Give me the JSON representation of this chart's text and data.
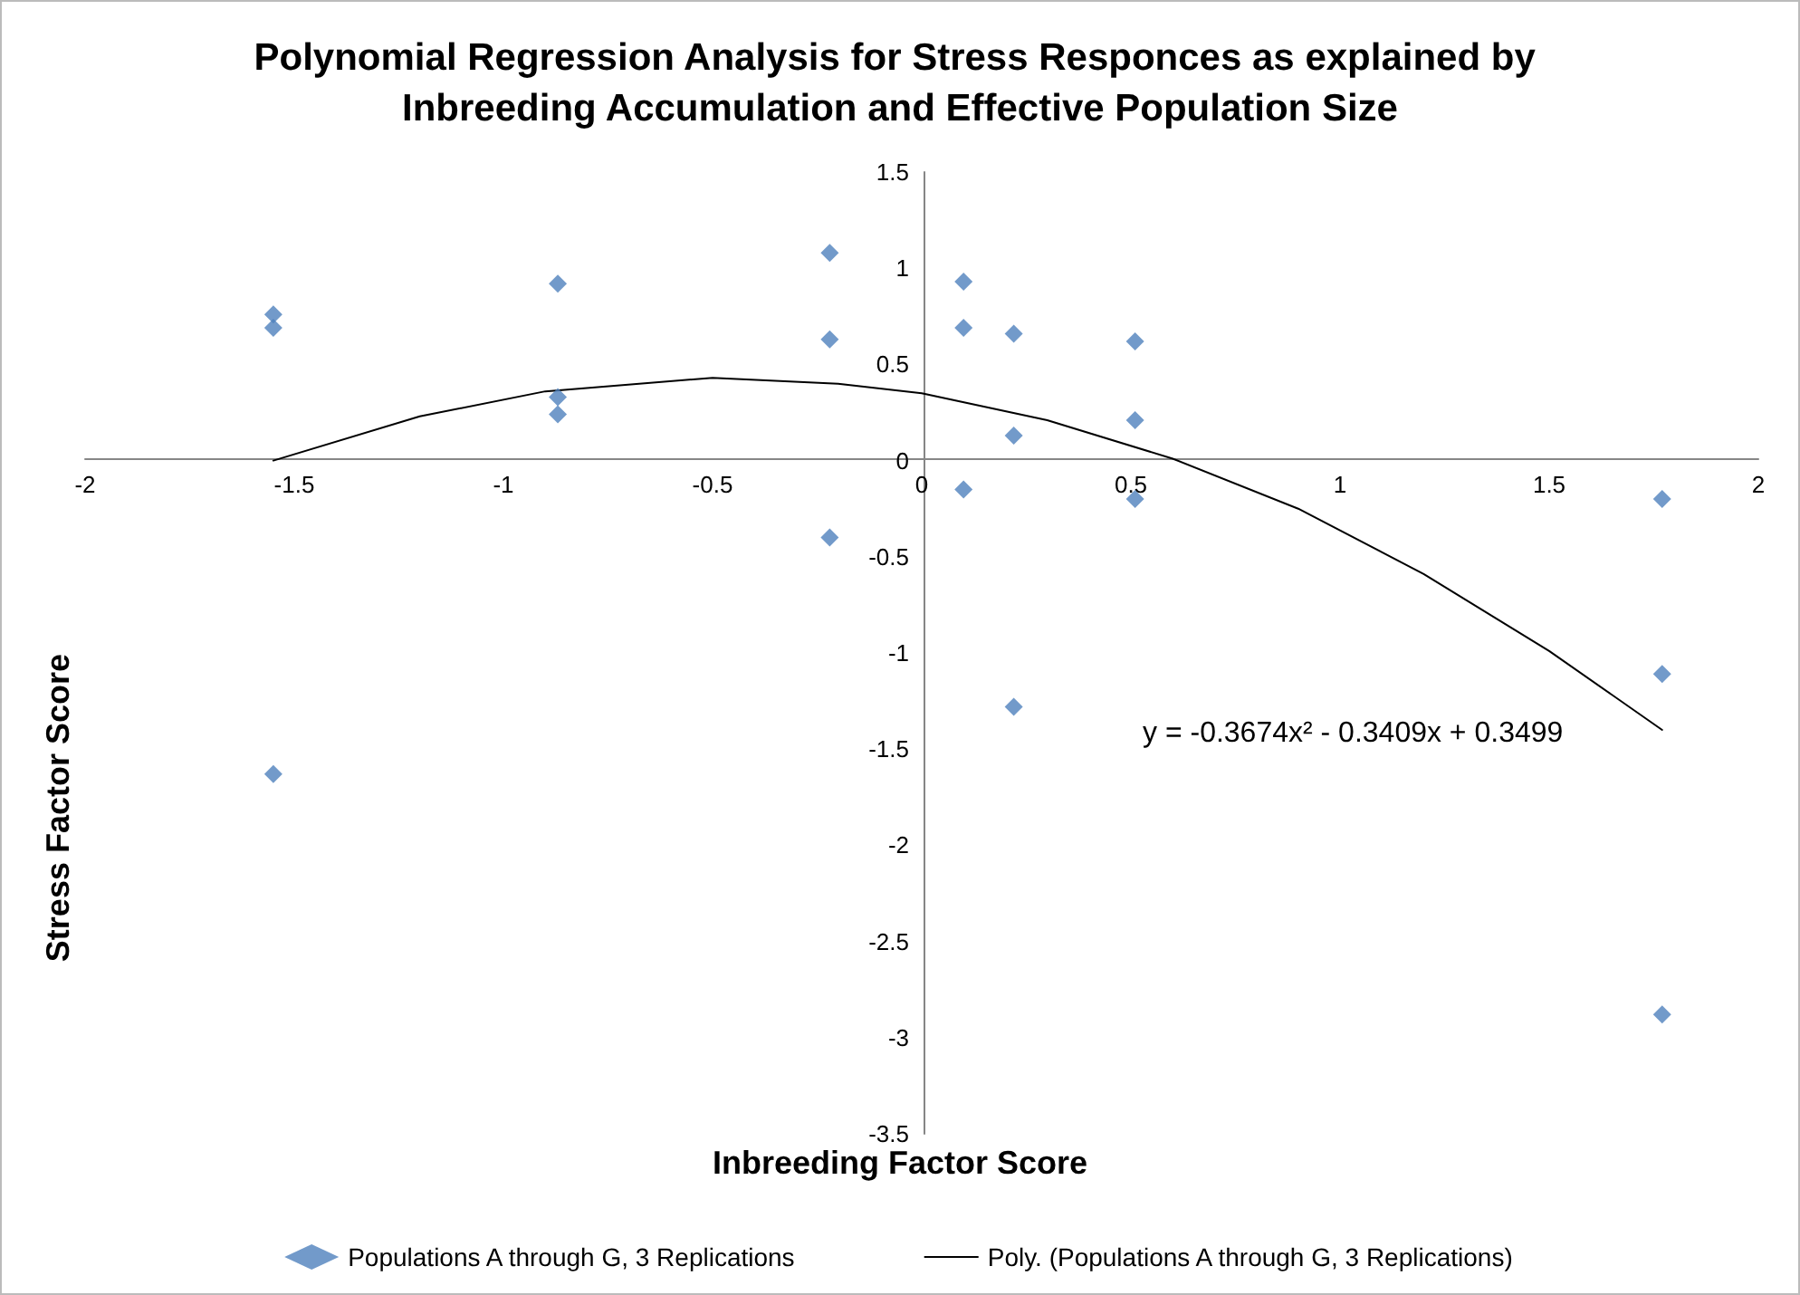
{
  "chart_data": {
    "type": "scatter",
    "title": "Polynomial Regression Analysis for Stress Responces as explained by Inbreeding Accumulation and Effective Population Size",
    "xlabel": "Inbreeding Factor Score",
    "ylabel": "Stress Factor Score",
    "series": [
      {
        "name": "Populations A through G, 3 Replications",
        "color": "#4f81bd",
        "marker": "diamond",
        "x": [
          -1.55,
          -1.55,
          -1.55,
          -0.87,
          -0.87,
          -0.87,
          -0.22,
          -0.22,
          -0.22,
          0.1,
          0.1,
          0.1,
          0.22,
          0.22,
          0.22,
          0.51,
          0.51,
          0.51,
          1.77,
          1.77,
          1.77
        ],
        "values": [
          0.76,
          0.69,
          -1.63,
          0.92,
          0.33,
          0.24,
          1.08,
          0.63,
          -0.4,
          0.93,
          0.69,
          -0.15,
          0.66,
          0.13,
          -1.28,
          0.62,
          0.21,
          -0.2,
          -0.2,
          -1.11,
          -2.88
        ]
      },
      {
        "name": "Poly. (Populations A through G, 3 Replications)",
        "type": "line",
        "color": "#000000",
        "marker": "none",
        "line_style": "solid",
        "x": [
          -1.55,
          -1.2,
          -0.9,
          -0.5,
          -0.2,
          0,
          0.3,
          0.6,
          0.9,
          1.2,
          1.5,
          1.77
        ],
        "values": [
          0.0,
          0.23,
          0.36,
          0.43,
          0.4,
          0.35,
          0.21,
          0.01,
          -0.25,
          -0.59,
          -0.99,
          -1.4
        ]
      }
    ],
    "annotations": [
      "y = -0.3674x² - 0.3409x + 0.3499"
    ],
    "xlim": [
      -2,
      2
    ],
    "xticks": [
      -2,
      -1.5,
      -1,
      -0.5,
      0,
      0.5,
      1,
      1.5,
      2
    ],
    "ylim": [
      -3.5,
      1.5
    ],
    "yticks": [
      -3.5,
      -3,
      -2.5,
      -2,
      -1.5,
      -1,
      -0.5,
      0,
      0.5,
      1,
      1.5
    ],
    "grid": false,
    "legend": "bottom"
  }
}
